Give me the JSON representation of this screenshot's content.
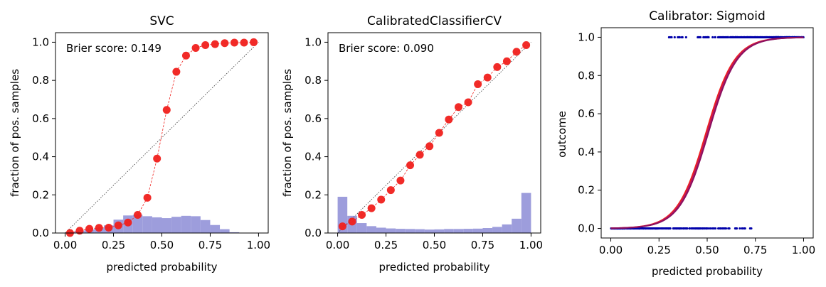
{
  "chart_data": [
    {
      "type": "line",
      "title": "SVC",
      "xlabel": "predicted probability",
      "ylabel": "fraction of pos. samples",
      "annotation": "Brier score: 0.149",
      "xlim": [
        -0.05,
        1.05
      ],
      "ylim": [
        0,
        1.05
      ],
      "xticks": [
        0,
        0.25,
        0.5,
        0.75,
        1
      ],
      "xtick_labels": [
        "0.00",
        "0.25",
        "0.50",
        "0.75",
        "1.00"
      ],
      "yticks": [
        0,
        0.2,
        0.4,
        0.6,
        0.8,
        1
      ],
      "ytick_labels": [
        "0.0",
        "0.2",
        "0.4",
        "0.6",
        "0.8",
        "1.0"
      ],
      "reference_line": [
        [
          0,
          0
        ],
        [
          1,
          1
        ]
      ],
      "histogram": {
        "bin_width": 0.05,
        "bin_starts": [
          0.0,
          0.05,
          0.1,
          0.15,
          0.2,
          0.25,
          0.3,
          0.35,
          0.4,
          0.45,
          0.5,
          0.55,
          0.6,
          0.65,
          0.7,
          0.75,
          0.8,
          0.85
        ],
        "heights": [
          0.005,
          0.012,
          0.018,
          0.027,
          0.04,
          0.07,
          0.092,
          0.096,
          0.088,
          0.082,
          0.078,
          0.085,
          0.09,
          0.088,
          0.068,
          0.042,
          0.02,
          0.004
        ],
        "color": "#9d9ddc"
      },
      "series": [
        {
          "color": "#f0201c",
          "x": [
            0.025,
            0.075,
            0.125,
            0.175,
            0.225,
            0.275,
            0.325,
            0.375,
            0.425,
            0.475,
            0.525,
            0.575,
            0.625,
            0.675,
            0.725,
            0.775,
            0.825,
            0.875,
            0.925,
            0.975
          ],
          "y": [
            0.0,
            0.012,
            0.022,
            0.027,
            0.028,
            0.04,
            0.055,
            0.095,
            0.185,
            0.39,
            0.645,
            0.845,
            0.93,
            0.97,
            0.985,
            0.99,
            0.995,
            0.998,
            0.998,
            1.0
          ]
        }
      ]
    },
    {
      "type": "line",
      "title": "CalibratedClassifierCV",
      "xlabel": "predicted probability",
      "ylabel": "fraction of pos. samples",
      "annotation": "Brier score: 0.090",
      "xlim": [
        -0.05,
        1.05
      ],
      "ylim": [
        0,
        1.05
      ],
      "xticks": [
        0,
        0.25,
        0.5,
        0.75,
        1
      ],
      "xtick_labels": [
        "0.00",
        "0.25",
        "0.50",
        "0.75",
        "1.00"
      ],
      "yticks": [
        0,
        0.2,
        0.4,
        0.6,
        0.8,
        1
      ],
      "ytick_labels": [
        "0.0",
        "0.2",
        "0.4",
        "0.6",
        "0.8",
        "1.0"
      ],
      "reference_line": [
        [
          0,
          0
        ],
        [
          1,
          1
        ]
      ],
      "histogram": {
        "bin_width": 0.05,
        "bin_starts": [
          0.0,
          0.05,
          0.1,
          0.15,
          0.2,
          0.25,
          0.3,
          0.35,
          0.4,
          0.45,
          0.5,
          0.55,
          0.6,
          0.65,
          0.7,
          0.75,
          0.8,
          0.85,
          0.9,
          0.95
        ],
        "heights": [
          0.19,
          0.09,
          0.052,
          0.036,
          0.028,
          0.024,
          0.022,
          0.021,
          0.02,
          0.018,
          0.019,
          0.021,
          0.021,
          0.022,
          0.023,
          0.026,
          0.032,
          0.045,
          0.075,
          0.21
        ],
        "color": "#9d9ddc"
      },
      "series": [
        {
          "color": "#f0201c",
          "x": [
            0.025,
            0.075,
            0.125,
            0.175,
            0.225,
            0.275,
            0.325,
            0.375,
            0.425,
            0.475,
            0.525,
            0.575,
            0.625,
            0.675,
            0.725,
            0.775,
            0.825,
            0.875,
            0.925,
            0.975
          ],
          "y": [
            0.035,
            0.06,
            0.095,
            0.13,
            0.175,
            0.225,
            0.275,
            0.355,
            0.41,
            0.455,
            0.525,
            0.595,
            0.66,
            0.685,
            0.78,
            0.815,
            0.87,
            0.9,
            0.95,
            0.985
          ]
        }
      ]
    },
    {
      "type": "scatter",
      "title": "Calibrator: Sigmoid",
      "xlabel": "predicted probability",
      "ylabel": "outcome",
      "xlim": [
        -0.05,
        1.05
      ],
      "ylim": [
        -0.05,
        1.05
      ],
      "xticks": [
        0,
        0.25,
        0.5,
        0.75,
        1
      ],
      "xtick_labels": [
        "0.00",
        "0.25",
        "0.50",
        "0.75",
        "1.00"
      ],
      "yticks": [
        0,
        0.2,
        0.4,
        0.6,
        0.8,
        1
      ],
      "ytick_labels": [
        "0.0",
        "0.2",
        "0.4",
        "0.6",
        "0.8",
        "1.0"
      ],
      "points": {
        "color": "#0000aa",
        "positive_outcome": {
          "y": 1,
          "x_range": [
            0.26,
            1.0
          ]
        },
        "negative_outcome": {
          "y": 0,
          "x_range": [
            0.0,
            0.78
          ]
        }
      },
      "curve": {
        "type": "sigmoid",
        "midpoint": 0.5,
        "steepness": 13.5,
        "colors": [
          "#f0201c",
          "#c0185a",
          "#8a1060"
        ]
      }
    }
  ]
}
